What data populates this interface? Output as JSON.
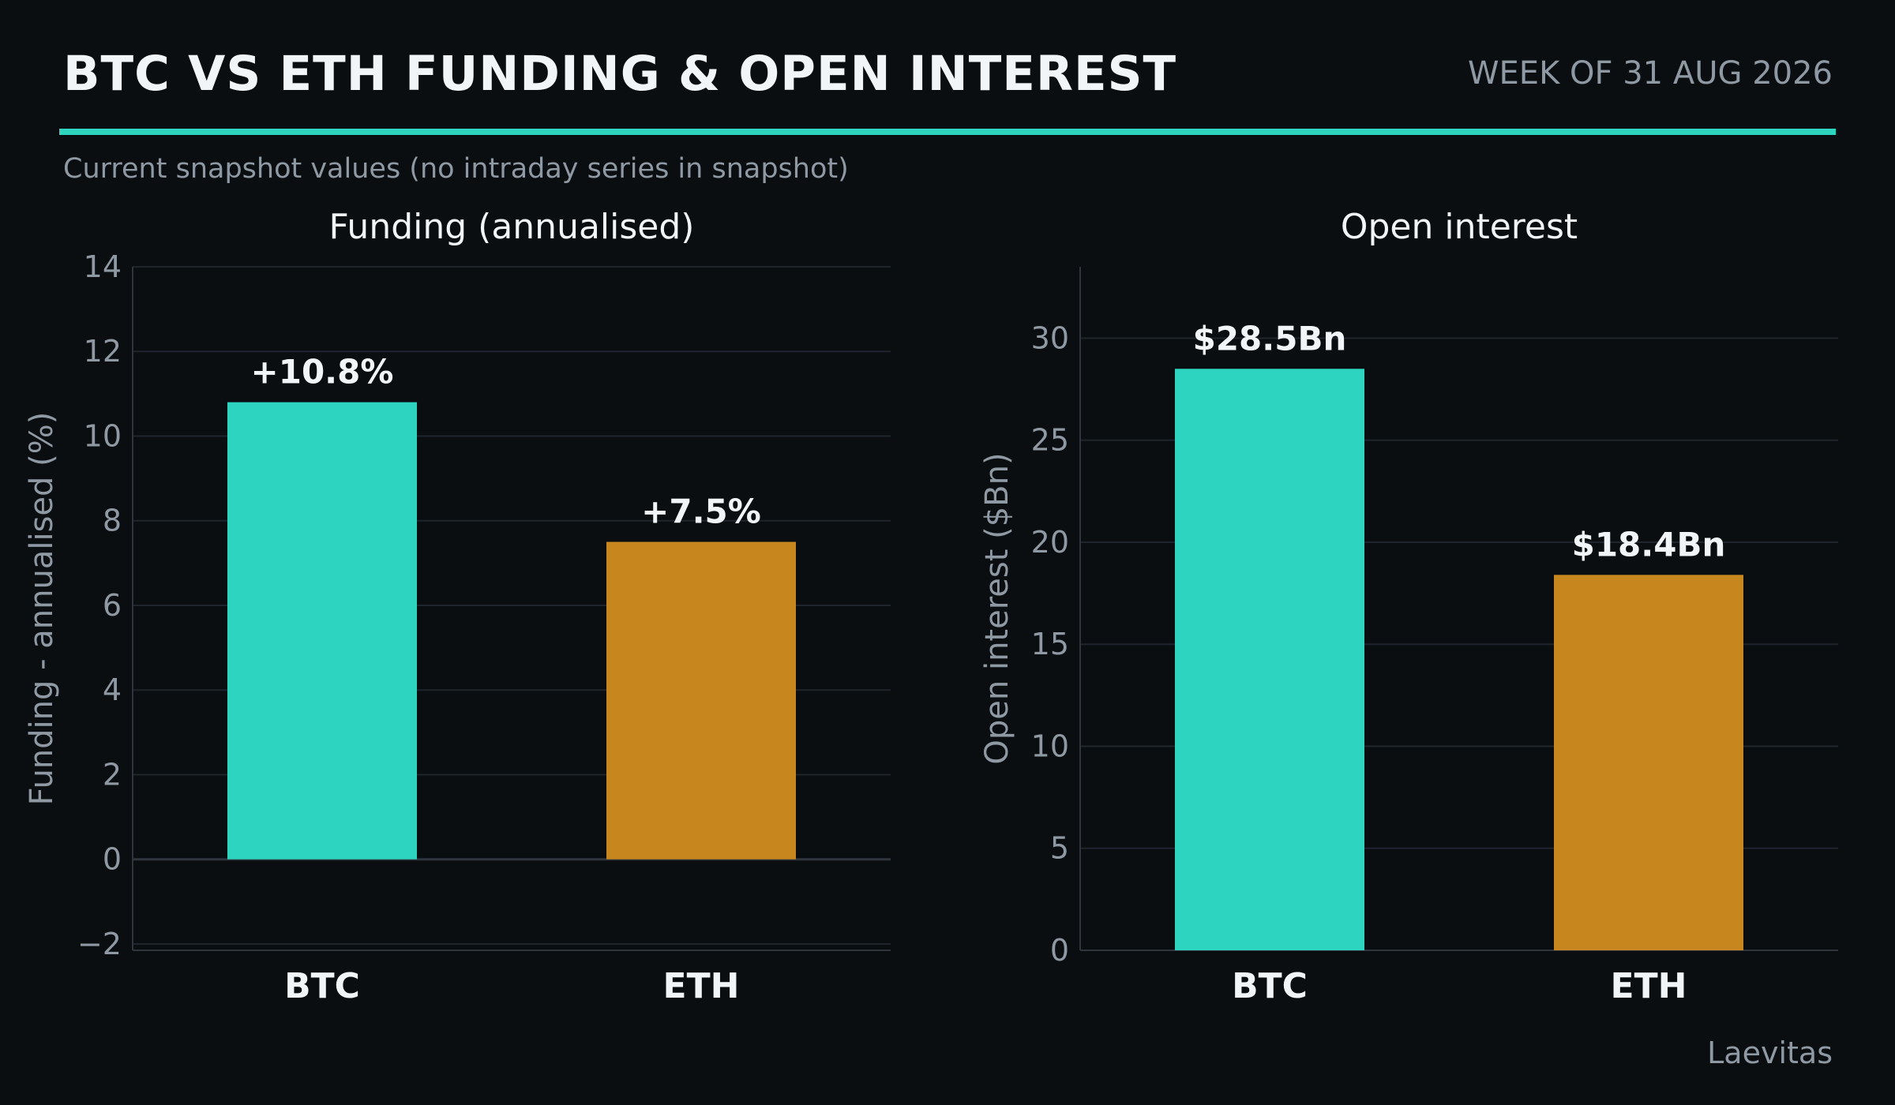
{
  "header": {
    "title": "BTC VS ETH FUNDING & OPEN INTEREST",
    "week": "WEEK OF 31 AUG 2026"
  },
  "subtitle": "Current snapshot values (no intraday series in snapshot)",
  "footer": {
    "source": "Laevitas"
  },
  "colors": {
    "background": "#0b0e11",
    "accent": "#2dd4bf",
    "btc": "#2dd4bf",
    "eth": "#c8871e",
    "grid": "#1f252c",
    "axis": "#2e353d",
    "muted_text": "#8e99a3",
    "text": "#f2f5f7"
  },
  "chart_data": [
    {
      "type": "bar",
      "title": "Funding (annualised)",
      "xlabel": "",
      "ylabel": "Funding - annualised (%)",
      "categories": [
        "BTC",
        "ETH"
      ],
      "values": [
        10.8,
        7.5
      ],
      "value_labels": [
        "+10.8%",
        "+7.5%"
      ],
      "bar_colors": [
        "#2dd4bf",
        "#c8871e"
      ],
      "ylim": [
        -2.15,
        14
      ],
      "yticks": [
        -2,
        0,
        2,
        4,
        6,
        8,
        10,
        12,
        14
      ],
      "ytick_labels": [
        "−2",
        "0",
        "2",
        "4",
        "6",
        "8",
        "10",
        "12",
        "14"
      ],
      "grid": true,
      "legend": "none"
    },
    {
      "type": "bar",
      "title": "Open interest",
      "xlabel": "",
      "ylabel": "Open interest ($Bn)",
      "categories": [
        "BTC",
        "ETH"
      ],
      "values": [
        28.5,
        18.4
      ],
      "value_labels": [
        "$28.5Bn",
        "$18.4Bn"
      ],
      "bar_colors": [
        "#2dd4bf",
        "#c8871e"
      ],
      "ylim": [
        0,
        33.5
      ],
      "yticks": [
        0,
        5,
        10,
        15,
        20,
        25,
        30
      ],
      "ytick_labels": [
        "0",
        "5",
        "10",
        "15",
        "20",
        "25",
        "30"
      ],
      "grid": true,
      "legend": "none"
    }
  ]
}
